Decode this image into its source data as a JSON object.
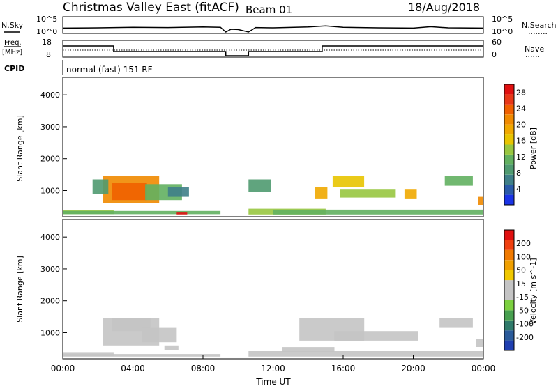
{
  "header": {
    "title": "Christmas Valley East (fitACF)",
    "beam": "Beam 01",
    "date": "18/Aug/2018"
  },
  "noise_panel": {
    "label": "N.Sky",
    "left_ticks": [
      "10^5",
      "10^0"
    ],
    "right_ticks": [
      "10^5",
      "10^0"
    ],
    "right_label": "N.Search"
  },
  "freq_panel": {
    "label_top": "Freq.",
    "label_unit": "[MHz]",
    "left_ticks": [
      "18",
      "8"
    ],
    "right_ticks": [
      "60",
      "0"
    ],
    "right_label": "Nave"
  },
  "cpid": {
    "label": "CPID",
    "value": "normal (fast) 151 RF"
  },
  "panels": {
    "range_label": "Slant Range [km]",
    "range_ticks": [
      "4000",
      "3000",
      "2000",
      "1000"
    ],
    "time_ticks": [
      "00:00",
      "04:00",
      "08:00",
      "12:00",
      "16:00",
      "20:00",
      "00:00"
    ],
    "xlabel": "Time UT"
  },
  "chart_data": [
    {
      "type": "line",
      "title": "N.Sky",
      "x": [
        0,
        2,
        4,
        6,
        8,
        9,
        9.3,
        9.6,
        10,
        10.6,
        11,
        12,
        14,
        15,
        16,
        18,
        20,
        21,
        22,
        24
      ],
      "series": [
        {
          "name": "N.Sky",
          "values": [
            1.4,
            1.5,
            1.7,
            1.6,
            1.8,
            1.7,
            0,
            1.0,
            0.9,
            0,
            1.6,
            1.5,
            1.8,
            2.2,
            1.7,
            1.5,
            1.4,
            1.9,
            1.5,
            1.4
          ]
        }
      ],
      "ylim": [
        0,
        5
      ],
      "xlim": [
        0,
        24
      ]
    },
    {
      "type": "line",
      "title": "Freq.",
      "x": [
        0,
        2.9,
        2.9,
        9.3,
        9.3,
        10.6,
        10.6,
        14.8,
        14.8,
        24
      ],
      "series": [
        {
          "name": "Freq.",
          "values": [
            15,
            15,
            11,
            11,
            8,
            8,
            11,
            11,
            15,
            15
          ]
        }
      ],
      "ylim": [
        8,
        18
      ],
      "xlim": [
        0,
        24
      ]
    },
    {
      "type": "heatmap",
      "title": "Power [dB]",
      "xlabel": "Time UT",
      "ylabel": "Slant Range [km]",
      "xlim": [
        0,
        24
      ],
      "ylim": [
        180,
        4550
      ],
      "colorbar": {
        "label": "Power [dB]",
        "ticks": [
          4,
          8,
          12,
          16,
          20,
          24,
          28
        ],
        "range": [
          0,
          30
        ],
        "colors": [
          "#1a33e6",
          "#2a5aa8",
          "#3f7f88",
          "#4f9a70",
          "#62b060",
          "#98c640",
          "#e8c400",
          "#f0a800",
          "#f08a00",
          "#f06000",
          "#e83818",
          "#e01010"
        ]
      },
      "regions": [
        {
          "t": [
            0.0,
            2.9
          ],
          "r": [
            260,
            390
          ],
          "value": 14
        },
        {
          "t": [
            2.3,
            5.5
          ],
          "r": [
            600,
            1450
          ],
          "value": 20
        },
        {
          "t": [
            2.8,
            4.8
          ],
          "r": [
            700,
            1250
          ],
          "value": 24
        },
        {
          "t": [
            4.7,
            6.8
          ],
          "r": [
            700,
            1200
          ],
          "value": 10
        },
        {
          "t": [
            6.0,
            7.2
          ],
          "r": [
            800,
            1100
          ],
          "value": 6
        },
        {
          "t": [
            1.7,
            2.6
          ],
          "r": [
            900,
            1350
          ],
          "value": 8
        },
        {
          "t": [
            0.0,
            9.0
          ],
          "r": [
            260,
            360
          ],
          "value": 10
        },
        {
          "t": [
            6.5,
            7.1
          ],
          "r": [
            250,
            330
          ],
          "value": 28
        },
        {
          "t": [
            10.6,
            11.9
          ],
          "r": [
            950,
            1350
          ],
          "value": 8
        },
        {
          "t": [
            10.6,
            15.0
          ],
          "r": [
            250,
            430
          ],
          "value": 14
        },
        {
          "t": [
            12.0,
            24.0
          ],
          "r": [
            250,
            400
          ],
          "value": 10
        },
        {
          "t": [
            14.4,
            15.1
          ],
          "r": [
            750,
            1100
          ],
          "value": 18
        },
        {
          "t": [
            15.4,
            17.2
          ],
          "r": [
            1100,
            1450
          ],
          "value": 16
        },
        {
          "t": [
            15.8,
            19.0
          ],
          "r": [
            780,
            1050
          ],
          "value": 14
        },
        {
          "t": [
            19.5,
            20.2
          ],
          "r": [
            750,
            1050
          ],
          "value": 18
        },
        {
          "t": [
            21.8,
            23.4
          ],
          "r": [
            1150,
            1450
          ],
          "value": 10
        },
        {
          "t": [
            23.7,
            24.0
          ],
          "r": [
            550,
            800
          ],
          "value": 20
        }
      ]
    },
    {
      "type": "heatmap",
      "title": "Velocity [m s^-1]",
      "xlabel": "Time UT",
      "ylabel": "Slant Range [km]",
      "xlim": [
        0,
        24
      ],
      "ylim": [
        180,
        4550
      ],
      "colorbar": {
        "label": "Velocity [m s^-1]",
        "ticks": [
          "200",
          "100",
          "50",
          "15",
          "-15",
          "-50",
          "-100",
          "-200"
        ],
        "range": [
          -250,
          250
        ],
        "colors": [
          "#1f3fb0",
          "#2a5a9a",
          "#2f7a6a",
          "#48a050",
          "#7cd040",
          "#c4c4c4",
          "#c4c4c4",
          "#f0c800",
          "#f0a000",
          "#f07a00",
          "#f04010",
          "#e01010"
        ]
      },
      "regions": [
        {
          "t": [
            0.0,
            2.9
          ],
          "r": [
            260,
            390
          ],
          "value": 40
        },
        {
          "t": [
            2.3,
            5.5
          ],
          "r": [
            600,
            1450
          ],
          "value": 0
        },
        {
          "t": [
            2.8,
            5.0
          ],
          "r": [
            1050,
            1450
          ],
          "value": 40
        },
        {
          "t": [
            4.5,
            6.5
          ],
          "r": [
            700,
            1150
          ],
          "value": 0
        },
        {
          "t": [
            5.8,
            6.6
          ],
          "r": [
            450,
            600
          ],
          "value": 0
        },
        {
          "t": [
            0.0,
            9.0
          ],
          "r": [
            250,
            330
          ],
          "value": 40
        },
        {
          "t": [
            10.6,
            24.0
          ],
          "r": [
            250,
            420
          ],
          "value": -40
        },
        {
          "t": [
            12.5,
            15.5
          ],
          "r": [
            400,
            550
          ],
          "value": -40
        },
        {
          "t": [
            13.5,
            17.2
          ],
          "r": [
            750,
            1450
          ],
          "value": 0
        },
        {
          "t": [
            15.5,
            20.3
          ],
          "r": [
            750,
            1050
          ],
          "value": 0
        },
        {
          "t": [
            21.5,
            23.4
          ],
          "r": [
            1150,
            1450
          ],
          "value": 0
        },
        {
          "t": [
            23.6,
            24.0
          ],
          "r": [
            550,
            800
          ],
          "value": 0
        }
      ]
    }
  ]
}
